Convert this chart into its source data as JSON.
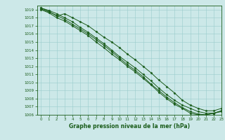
{
  "title": "Graphe pression niveau de la mer (hPa)",
  "bg_color": "#cce8e8",
  "grid_color": "#99cccc",
  "line_color": "#1a5c1a",
  "marker_color": "#1a5c1a",
  "xlim": [
    -0.5,
    23
  ],
  "ylim": [
    1006,
    1019.5
  ],
  "xticks": [
    0,
    1,
    2,
    3,
    4,
    5,
    6,
    7,
    8,
    9,
    10,
    11,
    12,
    13,
    14,
    15,
    16,
    17,
    18,
    19,
    20,
    21,
    22,
    23
  ],
  "yticks": [
    1006,
    1007,
    1008,
    1009,
    1010,
    1011,
    1012,
    1013,
    1014,
    1015,
    1016,
    1017,
    1018,
    1019
  ],
  "series": [
    [
      1019.2,
      1018.8,
      1018.2,
      1018.5,
      1018.0,
      1017.5,
      1017.0,
      1016.3,
      1015.6,
      1015.0,
      1014.3,
      1013.5,
      1012.8,
      1012.0,
      1011.2,
      1010.3,
      1009.5,
      1008.7,
      1007.8,
      1007.2,
      1006.8,
      1006.5,
      1006.5,
      1006.8
    ],
    [
      1019.2,
      1018.9,
      1018.5,
      1018.0,
      1017.5,
      1016.8,
      1016.2,
      1015.5,
      1014.8,
      1014.0,
      1013.2,
      1012.5,
      1011.8,
      1011.0,
      1010.2,
      1009.3,
      1008.5,
      1007.8,
      1007.2,
      1006.8,
      1006.4,
      1006.2,
      1006.2,
      1006.5
    ],
    [
      1019.1,
      1018.7,
      1018.3,
      1017.8,
      1017.2,
      1016.6,
      1016.0,
      1015.3,
      1014.6,
      1013.8,
      1013.0,
      1012.2,
      1011.5,
      1010.7,
      1009.8,
      1009.0,
      1008.2,
      1007.5,
      1006.9,
      1006.4,
      1006.1,
      1006.0,
      1006.2,
      1006.5
    ],
    [
      1019.0,
      1018.6,
      1018.0,
      1017.6,
      1017.0,
      1016.4,
      1015.8,
      1015.0,
      1014.3,
      1013.5,
      1012.8,
      1012.0,
      1011.3,
      1010.5,
      1009.7,
      1008.8,
      1008.0,
      1007.3,
      1006.8,
      1006.2,
      1006.0,
      1006.0,
      1006.2,
      1006.4
    ]
  ],
  "figwidth": 3.2,
  "figheight": 2.0,
  "dpi": 100
}
